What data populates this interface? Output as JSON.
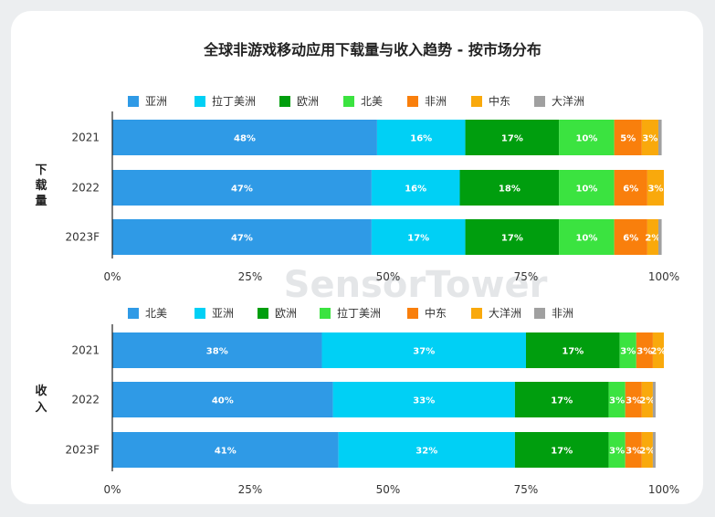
{
  "chart_data": {
    "type": "bar",
    "orientation": "horizontal-stacked-percent",
    "title": "全球非游戏移动应用下载量与收入趋势 - 按市场分布",
    "watermark": "SensorTower",
    "panels": [
      {
        "label": "下载量",
        "categories": [
          "2021",
          "2022",
          "2023F"
        ],
        "xlim": [
          0,
          100
        ],
        "xticks": [
          "0%",
          "25%",
          "50%",
          "75%",
          "100%"
        ],
        "series": [
          {
            "name": "亚洲",
            "color": "#2f9ae6",
            "values": [
              48,
              47,
              47
            ],
            "labels": [
              "48%",
              "47%",
              "47%"
            ]
          },
          {
            "name": "拉丁美洲",
            "color": "#00d0f5",
            "values": [
              16,
              16,
              17
            ],
            "labels": [
              "16%",
              "16%",
              "17%"
            ]
          },
          {
            "name": "欧洲",
            "color": "#009e0e",
            "values": [
              17,
              18,
              17
            ],
            "labels": [
              "17%",
              "18%",
              "17%"
            ]
          },
          {
            "name": "北美",
            "color": "#3be340",
            "values": [
              10,
              10,
              10
            ],
            "labels": [
              "10%",
              "10%",
              "10%"
            ]
          },
          {
            "name": "非洲",
            "color": "#f97f0c",
            "values": [
              5,
              6,
              6
            ],
            "labels": [
              "5%",
              "6%",
              "6%"
            ]
          },
          {
            "name": "中东",
            "color": "#f9a90c",
            "values": [
              3,
              3,
              2
            ],
            "labels": [
              "3%",
              "3%",
              "2%"
            ]
          },
          {
            "name": "大洋洲",
            "color": "#a0a0a0",
            "values": [
              0.6,
              0.6,
              0.6
            ],
            "labels": [
              "",
              "",
              ""
            ]
          }
        ]
      },
      {
        "label": "收入",
        "categories": [
          "2021",
          "2022",
          "2023F"
        ],
        "xlim": [
          0,
          100
        ],
        "xticks": [
          "0%",
          "25%",
          "50%",
          "75%",
          "100%"
        ],
        "series": [
          {
            "name": "北美",
            "color": "#2f9ae6",
            "values": [
              38,
              40,
              41
            ],
            "labels": [
              "38%",
              "40%",
              "41%"
            ]
          },
          {
            "name": "亚洲",
            "color": "#00d0f5",
            "values": [
              37,
              33,
              32
            ],
            "labels": [
              "37%",
              "33%",
              "32%"
            ]
          },
          {
            "name": "欧洲",
            "color": "#009e0e",
            "values": [
              17,
              17,
              17
            ],
            "labels": [
              "17%",
              "17%",
              "17%"
            ]
          },
          {
            "name": "拉丁美洲",
            "color": "#3be340",
            "values": [
              3,
              3,
              3
            ],
            "labels": [
              "3%",
              "3%",
              "3%"
            ]
          },
          {
            "name": "中东",
            "color": "#f97f0c",
            "values": [
              3,
              3,
              3
            ],
            "labels": [
              "3%",
              "3%",
              "3%"
            ]
          },
          {
            "name": "大洋洲",
            "color": "#f9a90c",
            "values": [
              2,
              2,
              2
            ],
            "labels": [
              "2%",
              "2%",
              "2%"
            ]
          },
          {
            "name": "非洲",
            "color": "#a0a0a0",
            "values": [
              0.5,
              0.5,
              0.5
            ],
            "labels": [
              "",
              "",
              ""
            ]
          }
        ]
      }
    ]
  }
}
